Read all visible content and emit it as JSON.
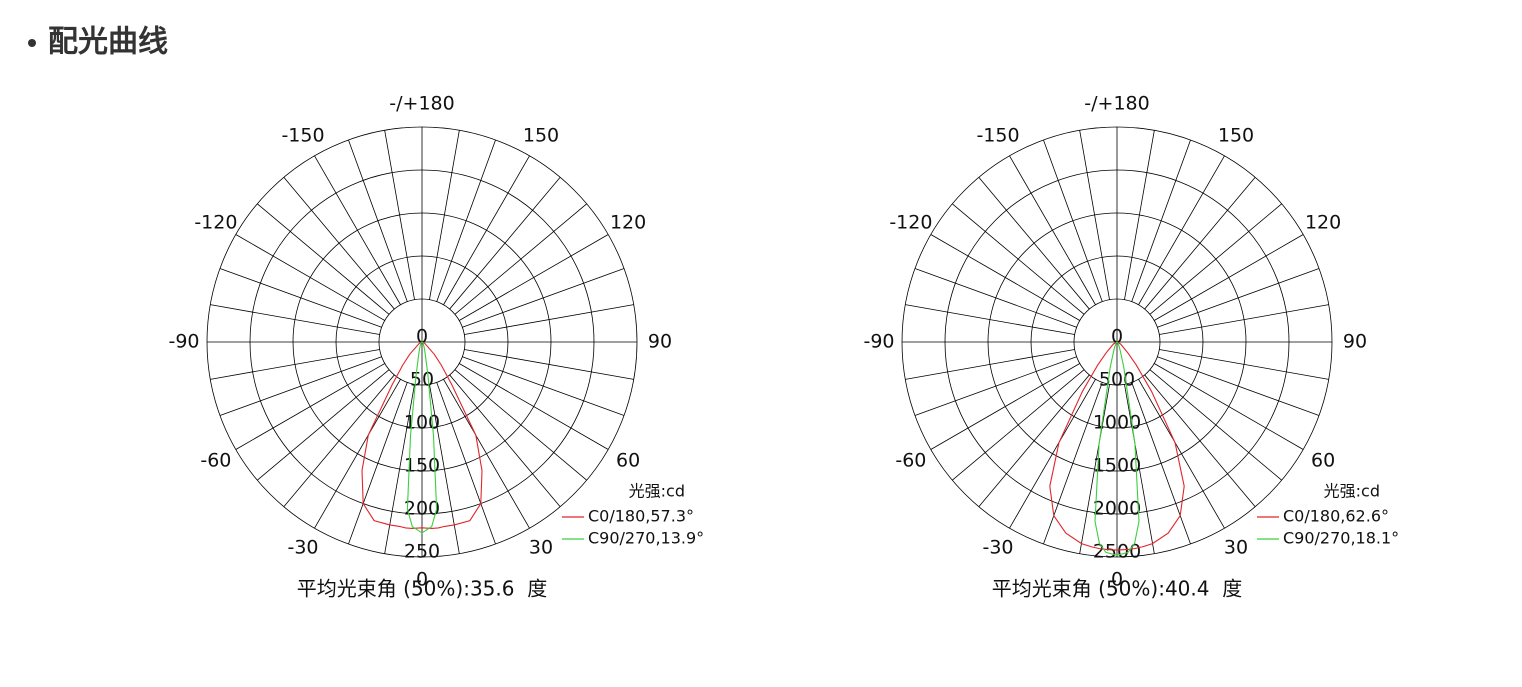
{
  "header": {
    "title": "配光曲线"
  },
  "chart_data": [
    {
      "type": "polar",
      "legend_title": "光强:cd",
      "footnote": "平均光束角 (50%):35.6  度",
      "rlim": [
        0,
        250
      ],
      "rticks": [
        0,
        50,
        100,
        150,
        200,
        250
      ],
      "aticks": [
        0,
        30,
        60,
        90,
        120,
        150,
        {
          "value": 180,
          "label": "-/+180"
        },
        -150,
        -120,
        -90,
        -60,
        -30
      ],
      "angle_grid_step": 10,
      "angles": [
        -90,
        -60,
        -45,
        -40,
        -35,
        -30,
        -25,
        -20,
        -15,
        -10,
        -7,
        -5,
        -3,
        0,
        3,
        5,
        7,
        10,
        15,
        20,
        25,
        30,
        35,
        40,
        45,
        60,
        90
      ],
      "series": [
        {
          "name": "C0/180,57.3°",
          "color": "#e0262b",
          "values": [
            0,
            4,
            20,
            35,
            60,
            125,
            165,
            200,
            215,
            216,
            216,
            217,
            217,
            216,
            217,
            217,
            216,
            216,
            215,
            200,
            165,
            125,
            60,
            35,
            20,
            4,
            0
          ]
        },
        {
          "name": "C90/270,13.9°",
          "color": "#3ccf3c",
          "values": [
            0,
            1,
            1,
            2,
            2,
            3,
            5,
            8,
            15,
            40,
            110,
            195,
            215,
            222,
            215,
            195,
            110,
            40,
            15,
            8,
            5,
            3,
            2,
            2,
            1,
            1,
            0
          ]
        }
      ]
    },
    {
      "type": "polar",
      "legend_title": "光强:cd",
      "footnote": "平均光束角 (50%):40.4  度",
      "rlim": [
        0,
        2500
      ],
      "rticks": [
        0,
        500,
        1000,
        1500,
        2000,
        2500
      ],
      "aticks": [
        0,
        30,
        60,
        90,
        120,
        150,
        {
          "value": 180,
          "label": "-/+180"
        },
        -150,
        -120,
        -90,
        -60,
        -30
      ],
      "angle_grid_step": 10,
      "angles": [
        -90,
        -60,
        -45,
        -40,
        -35,
        -30,
        -25,
        -20,
        -15,
        -10,
        -7,
        -5,
        -3,
        0,
        3,
        5,
        7,
        10,
        15,
        20,
        25,
        30,
        35,
        40,
        45,
        60,
        90
      ],
      "series": [
        {
          "name": "C0/180,62.6°",
          "color": "#e0262b",
          "values": [
            0,
            50,
            180,
            350,
            700,
            1350,
            1850,
            2150,
            2300,
            2380,
            2400,
            2410,
            2415,
            2420,
            2415,
            2410,
            2400,
            2380,
            2300,
            2150,
            1850,
            1350,
            700,
            350,
            180,
            50,
            0
          ]
        },
        {
          "name": "C90/270,18.1°",
          "color": "#3ccf3c",
          "values": [
            0,
            3,
            10,
            15,
            20,
            30,
            60,
            120,
            300,
            1200,
            2100,
            2350,
            2450,
            2480,
            2450,
            2350,
            2100,
            1200,
            300,
            120,
            60,
            30,
            20,
            15,
            10,
            3,
            0
          ]
        }
      ]
    }
  ]
}
